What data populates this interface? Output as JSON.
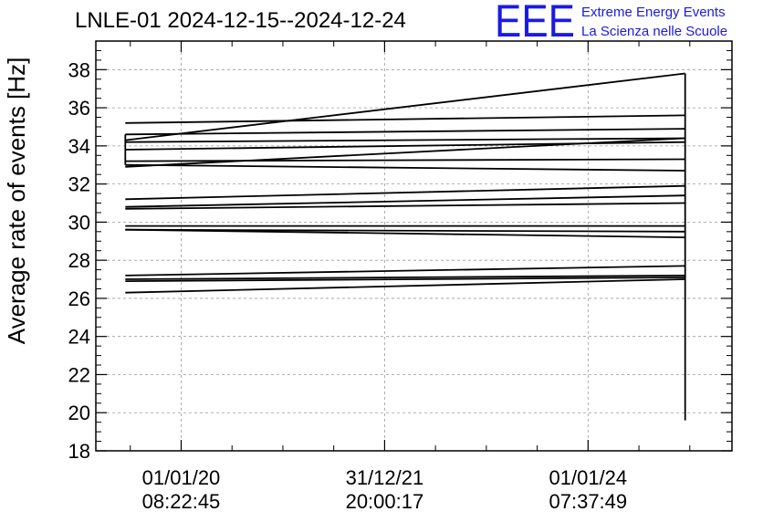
{
  "logo": {
    "mark": "EEE",
    "line1": "Extreme Energy Events",
    "line2": "La Scienza nelle Scuole",
    "color": "#1a1ae6"
  },
  "chart_data": {
    "type": "line",
    "title": "LNLE-01 2024-12-15--2024-12-24",
    "ylabel": "Average rate of events [Hz]",
    "xlabel": "",
    "ylim": [
      18,
      39.5
    ],
    "yticks": [
      18,
      20,
      22,
      24,
      26,
      28,
      30,
      32,
      34,
      36,
      38
    ],
    "xticks": [
      {
        "date": "01/01/20",
        "time": "08:22:45"
      },
      {
        "date": "31/12/21",
        "time": "20:00:17"
      },
      {
        "date": "01/01/24",
        "time": "07:37:49"
      }
    ],
    "x_start": "2019-03-01",
    "x_end": "2025-06-01",
    "grid": true,
    "series": [
      {
        "x": [
          "2019-06-15",
          "2024-12-15"
        ],
        "y": [
          35.2,
          35.6
        ]
      },
      {
        "x": [
          "2019-06-15",
          "2024-12-15"
        ],
        "y": [
          34.6,
          34.9
        ]
      },
      {
        "x": [
          "2019-06-15",
          "2024-12-15"
        ],
        "y": [
          34.3,
          37.8
        ]
      },
      {
        "x": [
          "2019-06-15",
          "2024-12-15"
        ],
        "y": [
          34.2,
          34.4
        ]
      },
      {
        "x": [
          "2019-06-15",
          "2024-12-15"
        ],
        "y": [
          33.8,
          34.2
        ]
      },
      {
        "x": [
          "2019-06-15",
          "2024-12-15"
        ],
        "y": [
          33.2,
          33.3
        ]
      },
      {
        "x": [
          "2019-06-15",
          "2024-12-15"
        ],
        "y": [
          32.9,
          34.4
        ]
      },
      {
        "x": [
          "2019-06-15",
          "2024-12-15"
        ],
        "y": [
          33.0,
          32.7
        ]
      },
      {
        "x": [
          "2019-06-15",
          "2024-12-15"
        ],
        "y": [
          31.2,
          31.9
        ]
      },
      {
        "x": [
          "2019-06-15",
          "2024-12-15"
        ],
        "y": [
          30.8,
          31.4
        ]
      },
      {
        "x": [
          "2019-06-15",
          "2024-12-15"
        ],
        "y": [
          30.7,
          31.0
        ]
      },
      {
        "x": [
          "2019-06-15",
          "2024-12-15"
        ],
        "y": [
          29.8,
          29.8
        ]
      },
      {
        "x": [
          "2019-06-15",
          "2024-12-15"
        ],
        "y": [
          29.6,
          29.5
        ]
      },
      {
        "x": [
          "2019-06-15",
          "2024-12-15"
        ],
        "y": [
          29.6,
          29.2
        ]
      },
      {
        "x": [
          "2019-06-15",
          "2024-12-15"
        ],
        "y": [
          27.2,
          27.7
        ]
      },
      {
        "x": [
          "2019-06-15",
          "2024-12-15"
        ],
        "y": [
          27.0,
          27.2
        ]
      },
      {
        "x": [
          "2019-06-15",
          "2024-12-15"
        ],
        "y": [
          26.9,
          27.1
        ]
      },
      {
        "x": [
          "2019-06-15",
          "2024-12-15"
        ],
        "y": [
          26.3,
          27.0
        ]
      },
      {
        "x": [
          "2019-06-15",
          "2019-06-15"
        ],
        "y": [
          33.0,
          34.6
        ]
      },
      {
        "x": [
          "2024-12-15",
          "2024-12-15"
        ],
        "y": [
          19.6,
          37.8
        ]
      }
    ]
  }
}
